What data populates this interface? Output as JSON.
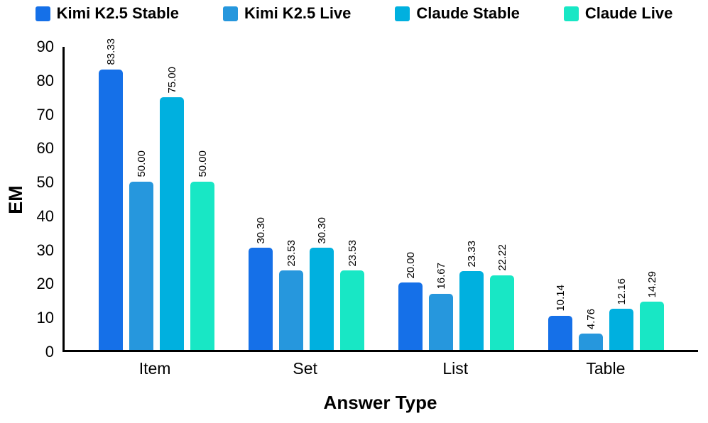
{
  "chart_data": {
    "type": "bar",
    "title": "",
    "xlabel": "Answer Type",
    "ylabel": "EM",
    "ylim": [
      0,
      90
    ],
    "ytick_step": 10,
    "grid": false,
    "legend_position": "top",
    "value_label_format": "2-decimals",
    "value_label_rotation": 90,
    "categories": [
      "Item",
      "Set",
      "List",
      "Table"
    ],
    "series": [
      {
        "name": "Kimi K2.5 Stable",
        "color": "#1570e8",
        "values": [
          83.33,
          30.3,
          20.0,
          10.14
        ]
      },
      {
        "name": "Kimi K2.5 Live",
        "color": "#2697dd",
        "values": [
          50.0,
          23.53,
          16.67,
          4.76
        ]
      },
      {
        "name": "Claude Stable",
        "color": "#00b0df",
        "values": [
          75.0,
          30.3,
          23.33,
          12.16
        ]
      },
      {
        "name": "Claude Live",
        "color": "#18e7c5",
        "values": [
          50.0,
          23.53,
          22.22,
          14.29
        ]
      }
    ]
  }
}
